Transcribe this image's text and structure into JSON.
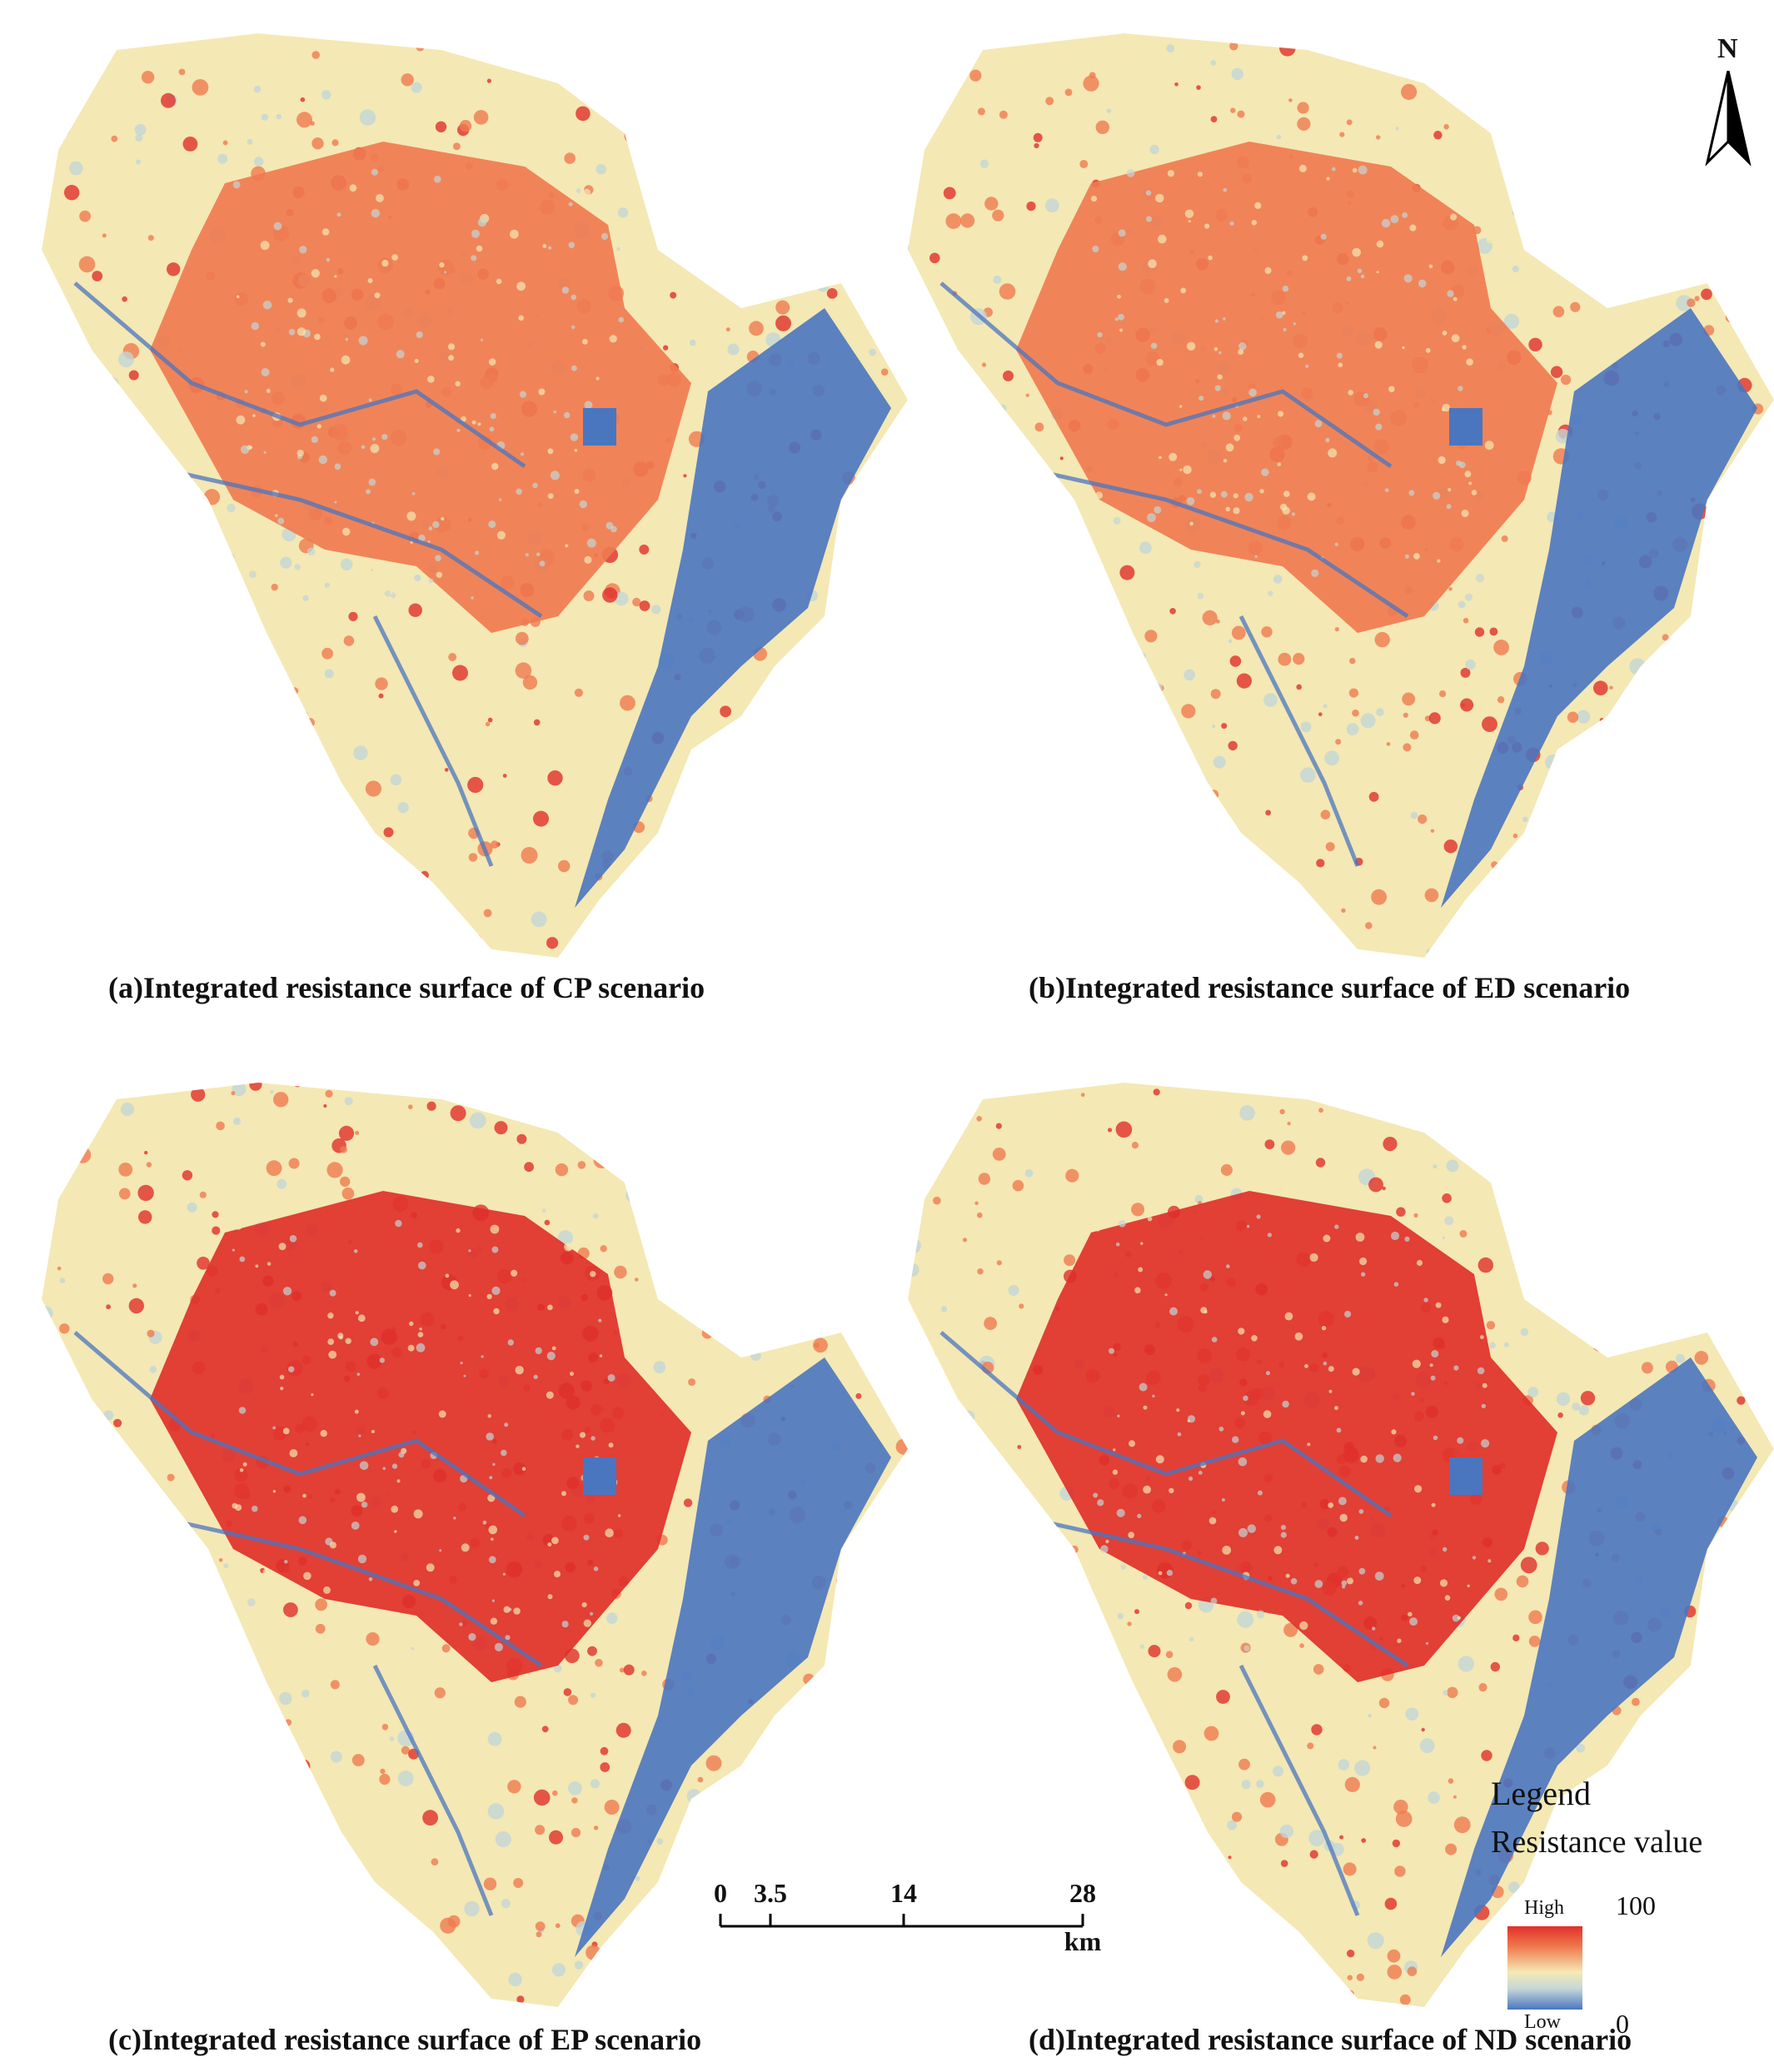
{
  "panels": [
    {
      "id": "a",
      "caption": "(a)Integrated resistance surface of CP scenario"
    },
    {
      "id": "b",
      "caption": "(b)Integrated resistance surface of ED scenario"
    },
    {
      "id": "c",
      "caption": "(c)Integrated resistance surface of EP scenario"
    },
    {
      "id": "d",
      "caption": "(d)Integrated resistance surface of ND scenario"
    }
  ],
  "north_arrow": {
    "label": "N"
  },
  "scale_bar": {
    "ticks": [
      "0",
      "3.5",
      "14",
      "28"
    ],
    "unit": "km"
  },
  "legend": {
    "title": "Legend",
    "subtitle": "Resistance value",
    "high_label": "High",
    "low_label": "Low",
    "max_value": "100",
    "min_value": "0"
  },
  "colors": {
    "high": "#e0302a",
    "mid_high": "#ef7b50",
    "mid": "#f4e8b4",
    "mid_low": "#c3d6d6",
    "low": "#4a76c0"
  }
}
